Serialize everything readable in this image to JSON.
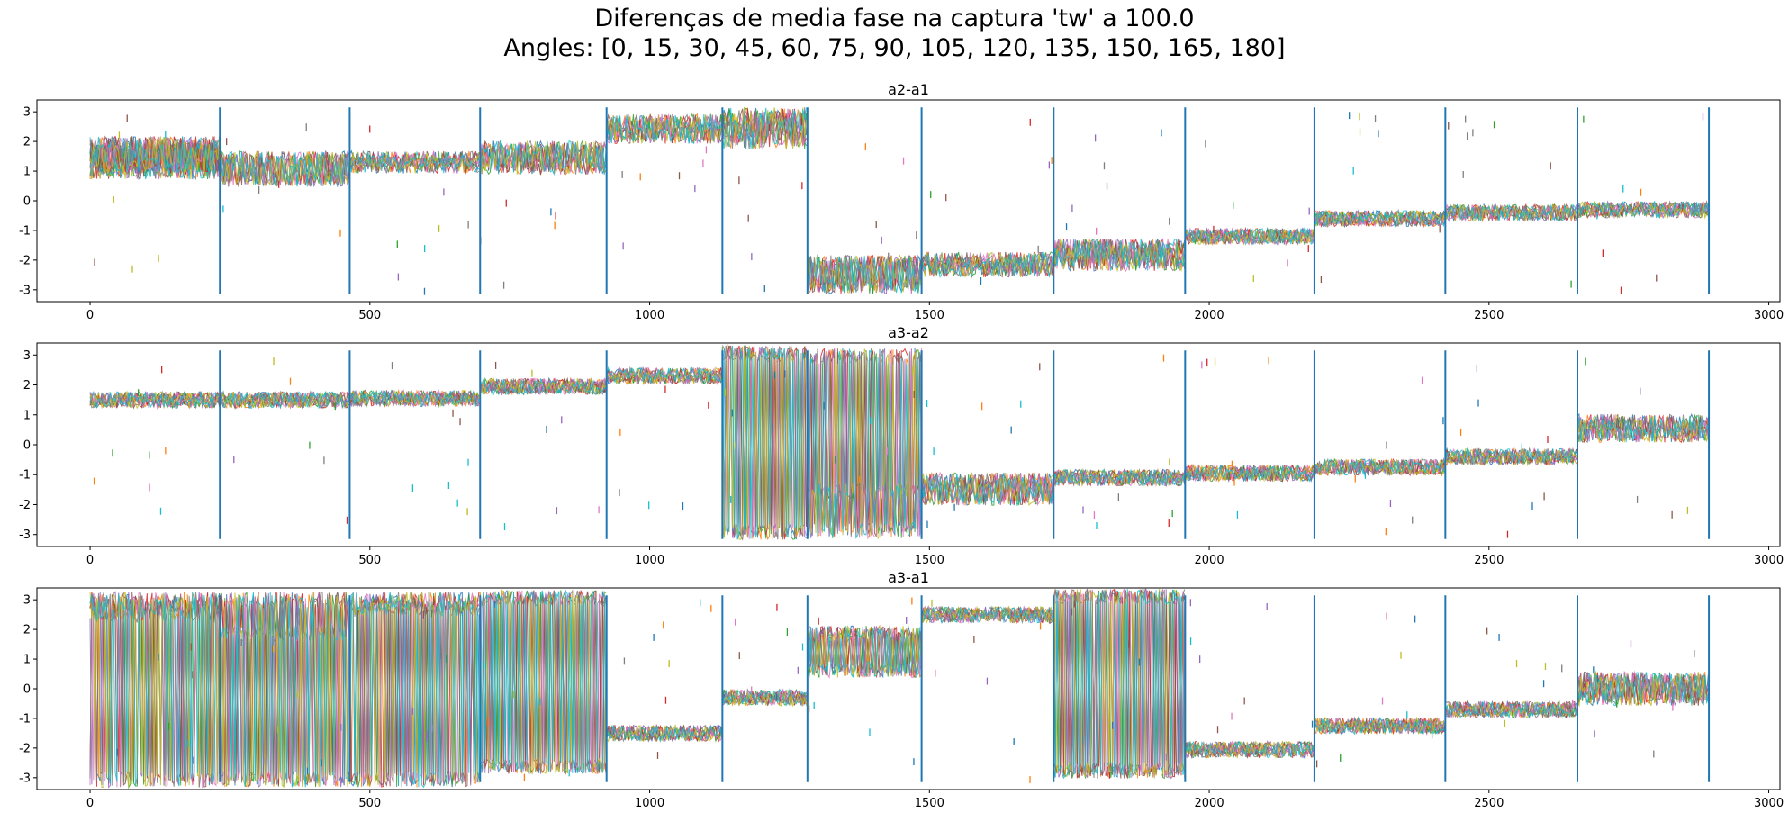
{
  "title_line1": "Diferenças de media fase na captura 'tw' a 100.0",
  "title_line2": "Angles: [0, 15, 30, 45, 60, 75, 90, 105, 120, 135, 150, 165, 180]",
  "colors": [
    "#1f77b4",
    "#ff7f0e",
    "#2ca02c",
    "#d62728",
    "#9467bd",
    "#8c564b",
    "#e377c2",
    "#7f7f7f",
    "#bcbd22",
    "#17becf"
  ],
  "chart_data": [
    {
      "type": "line",
      "title": "a2-a1",
      "xlabel": "",
      "ylabel": "",
      "xlim": [
        -95,
        3020
      ],
      "ylim": [
        -3.4,
        3.4
      ],
      "xticks": [
        0,
        500,
        1000,
        1500,
        2000,
        2500,
        3000
      ],
      "yticks": [
        -3,
        -2,
        -1,
        0,
        1,
        2,
        3
      ],
      "vlines_x": [
        232,
        464,
        697,
        923,
        1130,
        1282,
        1486,
        1722,
        1957,
        2188,
        2422,
        2658,
        2893
      ],
      "segments": [
        {
          "x": [
            0,
            232
          ],
          "bands": [
            [
              1.0,
              1.7
            ],
            [
              1.2,
              1.9
            ]
          ]
        },
        {
          "x": [
            232,
            464
          ],
          "bands": [
            [
              0.75,
              1.4
            ]
          ]
        },
        {
          "x": [
            464,
            697
          ],
          "bands": [
            [
              1.2,
              1.4
            ]
          ]
        },
        {
          "x": [
            697,
            923
          ],
          "bands": [
            [
              1.15,
              1.75
            ]
          ]
        },
        {
          "x": [
            923,
            1130
          ],
          "bands": [
            [
              2.2,
              2.65
            ]
          ]
        },
        {
          "x": [
            1130,
            1282
          ],
          "bands": [
            [
              2.0,
              2.5,
              2.9
            ]
          ]
        },
        {
          "x": [
            1282,
            1486
          ],
          "bands": [
            [
              -2.1,
              -2.85
            ]
          ]
        },
        {
          "x": [
            1486,
            1722
          ],
          "bands": [
            [
              -2.0,
              -2.3
            ]
          ]
        },
        {
          "x": [
            1722,
            1957
          ],
          "bands": [
            [
              -1.55,
              -2.1
            ]
          ]
        },
        {
          "x": [
            1957,
            2188
          ],
          "bands": [
            [
              -1.2
            ]
          ]
        },
        {
          "x": [
            2188,
            2422
          ],
          "bands": [
            [
              -0.6
            ]
          ]
        },
        {
          "x": [
            2422,
            2658
          ],
          "bands": [
            [
              -0.4
            ]
          ]
        },
        {
          "x": [
            2658,
            2893
          ],
          "bands": [
            [
              -0.3
            ]
          ]
        }
      ]
    },
    {
      "type": "line",
      "title": "a3-a2",
      "xlabel": "",
      "ylabel": "",
      "xlim": [
        -95,
        3020
      ],
      "ylim": [
        -3.4,
        3.4
      ],
      "xticks": [
        0,
        500,
        1000,
        1500,
        2000,
        2500,
        3000
      ],
      "yticks": [
        -3,
        -2,
        -1,
        0,
        1,
        2,
        3
      ],
      "vlines_x": [
        232,
        464,
        697,
        923,
        1130,
        1282,
        1486,
        1722,
        1957,
        2188,
        2422,
        2658,
        2893
      ],
      "segments": [
        {
          "x": [
            0,
            232
          ],
          "bands": [
            [
              1.5
            ]
          ]
        },
        {
          "x": [
            232,
            464
          ],
          "bands": [
            [
              1.5
            ]
          ]
        },
        {
          "x": [
            464,
            697
          ],
          "bands": [
            [
              1.55
            ]
          ]
        },
        {
          "x": [
            697,
            923
          ],
          "bands": [
            [
              1.95
            ]
          ]
        },
        {
          "x": [
            923,
            1130
          ],
          "bands": [
            [
              2.3
            ]
          ]
        },
        {
          "x": [
            1130,
            1282
          ],
          "bands": [
            [
              3.05,
              -2.9
            ]
          ]
        },
        {
          "x": [
            1282,
            1486
          ],
          "bands": [
            [
              2.95,
              -1.55,
              -2.85
            ]
          ]
        },
        {
          "x": [
            1486,
            1722
          ],
          "bands": [
            [
              -1.2,
              -1.75
            ]
          ]
        },
        {
          "x": [
            1722,
            1957
          ],
          "bands": [
            [
              -1.1
            ]
          ]
        },
        {
          "x": [
            1957,
            2188
          ],
          "bands": [
            [
              -0.95
            ]
          ]
        },
        {
          "x": [
            2188,
            2422
          ],
          "bands": [
            [
              -0.75
            ]
          ]
        },
        {
          "x": [
            2422,
            2658
          ],
          "bands": [
            [
              -0.4
            ]
          ]
        },
        {
          "x": [
            2658,
            2893
          ],
          "bands": [
            [
              0.35,
              0.75
            ]
          ]
        }
      ]
    },
    {
      "type": "line",
      "title": "a3-a1",
      "xlabel": "",
      "ylabel": "",
      "xlim": [
        -95,
        3020
      ],
      "ylim": [
        -3.4,
        3.4
      ],
      "xticks": [
        0,
        500,
        1000,
        1500,
        2000,
        2500,
        3000
      ],
      "yticks": [
        -3,
        -2,
        -1,
        0,
        1,
        2,
        3
      ],
      "vlines_x": [
        232,
        464,
        697,
        923,
        1130,
        1282,
        1486,
        1722,
        1957,
        2188,
        2422,
        2658,
        2893
      ],
      "segments": [
        {
          "x": [
            0,
            232
          ],
          "bands": [
            [
              2.5,
              3.0,
              -3.05
            ]
          ]
        },
        {
          "x": [
            232,
            464
          ],
          "bands": [
            [
              1.85,
              3.0,
              -3.05
            ]
          ]
        },
        {
          "x": [
            464,
            697
          ],
          "bands": [
            [
              2.7,
              3.0,
              -3.05
            ]
          ]
        },
        {
          "x": [
            697,
            923
          ],
          "bands": [
            [
              3.05,
              -2.6
            ]
          ]
        },
        {
          "x": [
            923,
            1130
          ],
          "bands": [
            [
              -1.5
            ]
          ]
        },
        {
          "x": [
            1130,
            1282
          ],
          "bands": [
            [
              -0.3
            ]
          ]
        },
        {
          "x": [
            1282,
            1486
          ],
          "bands": [
            [
              1.85,
              0.65
            ]
          ]
        },
        {
          "x": [
            1486,
            1722
          ],
          "bands": [
            [
              2.5
            ]
          ]
        },
        {
          "x": [
            1722,
            1957
          ],
          "bands": [
            [
              -2.75,
              3.1
            ]
          ]
        },
        {
          "x": [
            1957,
            2188
          ],
          "bands": [
            [
              -2.05
            ]
          ]
        },
        {
          "x": [
            2188,
            2422
          ],
          "bands": [
            [
              -1.25
            ]
          ]
        },
        {
          "x": [
            2422,
            2658
          ],
          "bands": [
            [
              -0.7
            ]
          ]
        },
        {
          "x": [
            2658,
            2893
          ],
          "bands": [
            [
              0.3,
              -0.3
            ]
          ]
        }
      ]
    }
  ]
}
